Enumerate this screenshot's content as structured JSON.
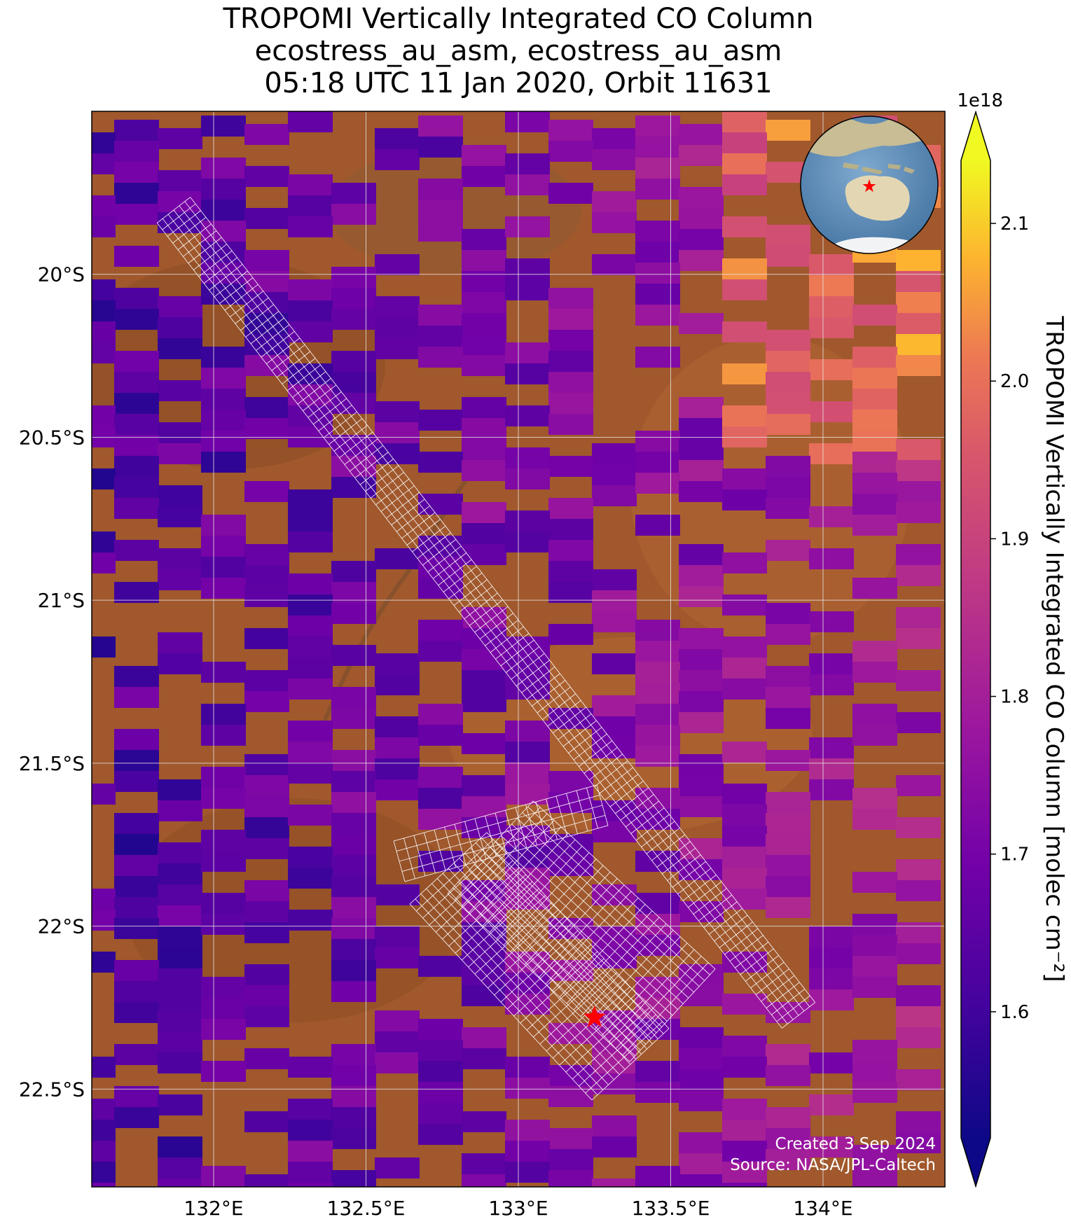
{
  "title": {
    "line1": "TROPOMI Vertically Integrated CO Column",
    "line2": "ecostress_au_asm, ecostress_au_asm",
    "line3": "05:18 UTC 11 Jan 2020, Orbit 11631"
  },
  "chart_data": {
    "type": "heatmap",
    "lon_ticks": [
      "132°E",
      "132.5°E",
      "133°E",
      "133.5°E",
      "134°E"
    ],
    "lon_tick_values": [
      132.0,
      132.5,
      133.0,
      133.5,
      134.0
    ],
    "lat_ticks": [
      "20°S",
      "20.5°S",
      "21°S",
      "21.5°S",
      "22°S",
      "22.5°S"
    ],
    "lat_tick_values": [
      -20.0,
      -20.5,
      -21.0,
      -21.5,
      -22.0,
      -22.5
    ],
    "lon_range": [
      131.6,
      134.4
    ],
    "lat_range": [
      -22.8,
      -19.5
    ],
    "grid": true,
    "target_marker": {
      "lon": 133.25,
      "lat": -22.28,
      "color": "#ff0000"
    },
    "colorbar": {
      "label": "TROPOMI Vertically Integrated CO Column [molec cm⁻²]",
      "exponent": "1e18",
      "ticks": [
        "1.6",
        "1.7",
        "1.8",
        "1.9",
        "2.0",
        "2.1"
      ],
      "tick_values": [
        1.6,
        1.7,
        1.8,
        1.9,
        2.0,
        2.1
      ],
      "range": [
        1.52,
        2.14
      ],
      "colormap": "plasma",
      "extend": "both"
    },
    "inset_globe": {
      "center": "Australia",
      "marker_color": "#ff0000"
    }
  },
  "annotations": {
    "created": "Created 3 Sep 2024",
    "source": "Source: NASA/JPL-Caltech"
  },
  "colors": {
    "terrain": "#a0582c",
    "grid": "#e6e6e6",
    "footprint": "#ffffff",
    "marker": "#ff0000",
    "ocean": "#5f8fb9"
  }
}
